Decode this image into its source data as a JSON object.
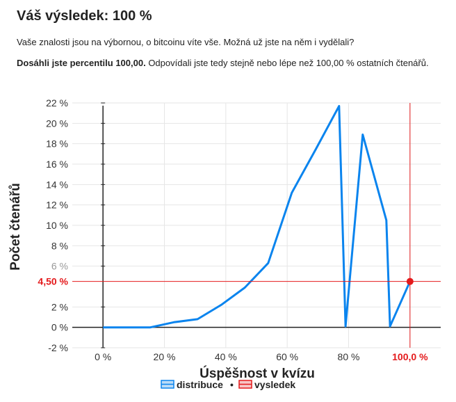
{
  "header": {
    "title": "Váš výsledek: 100 %",
    "text1": "Vaše znalosti jsou na výbornou, o bitcoinu víte vše. Možná už jste na něm i vydělali?",
    "text2_bold": "Dosáhli jste percentilu 100,00.",
    "text2_rest": " Odpovídali jste tedy stejně nebo lépe než 100,00 % ostatních čtenářů."
  },
  "chart_data": {
    "type": "line",
    "xlabel": "Úspěšnost v kvízu",
    "ylabel": "Počet čtenářů",
    "xlim": [
      -10,
      110
    ],
    "ylim": [
      -2,
      22
    ],
    "x_ticks": [
      0,
      20,
      40,
      60,
      80
    ],
    "x_tick_labels": [
      "0 %",
      "20 %",
      "40 %",
      "60 %",
      "80 %"
    ],
    "y_ticks": [
      -2,
      0,
      2,
      6,
      8,
      10,
      12,
      14,
      16,
      18,
      20,
      22
    ],
    "y_tick_labels": [
      "-2 %",
      "0 %",
      "2 %",
      "6 %",
      "8 %",
      "10 %",
      "12 %",
      "14 %",
      "16 %",
      "18 %",
      "20 %",
      "22 %"
    ],
    "grid": true,
    "series": [
      {
        "name": "distribuce",
        "color": "#0a84ee",
        "x": [
          0,
          7.7,
          15.4,
          20,
          23.1,
          30.8,
          38.5,
          46.2,
          53.8,
          61.5,
          69.2,
          76.9,
          79,
          84.6,
          92.3,
          93.5,
          100
        ],
        "y": [
          0,
          0,
          0,
          0.3,
          0.5,
          0.8,
          2.2,
          3.9,
          6.3,
          13.2,
          17.4,
          21.7,
          0.1,
          18.9,
          10.5,
          0.1,
          4.5
        ]
      }
    ],
    "marker": {
      "name": "vysledek",
      "x": 100,
      "y": 4.5,
      "x_label": "100,0 %",
      "y_label": "4,50 %",
      "color": "#e41a1c"
    },
    "legend": {
      "position": "bottom",
      "items": [
        "distribuce",
        "vysledek"
      ],
      "separator": "•"
    }
  }
}
